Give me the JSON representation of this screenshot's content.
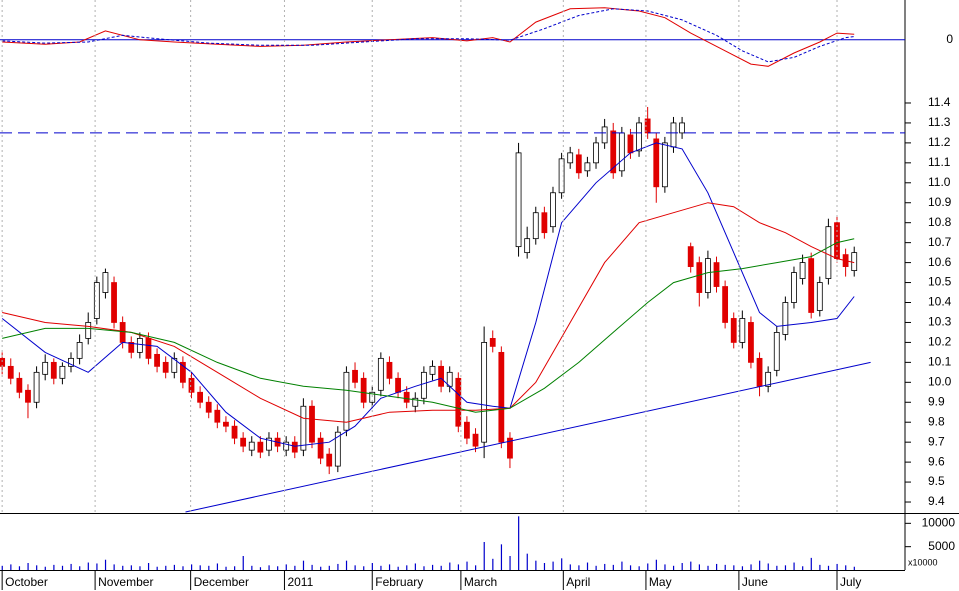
{
  "chart_data": [
    {
      "type": "line",
      "xlim": [
        -0.25,
        104.9
      ],
      "ylim": [
        -0.25,
        0.18
      ],
      "yticks": [
        0
      ],
      "zero_color": "#0000cc",
      "series": [
        {
          "color": "#e00000",
          "dash": false,
          "x": [
            0,
            5,
            9,
            12,
            16,
            20,
            25,
            30,
            35,
            40,
            45,
            50,
            54,
            57,
            59,
            62,
            66,
            70,
            74,
            77,
            80,
            84,
            87,
            89,
            92,
            95,
            97,
            99
          ],
          "values": [
            -0.01,
            -0.02,
            -0.01,
            0.04,
            0.0,
            -0.01,
            -0.02,
            -0.03,
            -0.025,
            -0.01,
            0.0,
            0.01,
            -0.005,
            0.01,
            -0.01,
            0.08,
            0.14,
            0.145,
            0.13,
            0.1,
            0.03,
            -0.05,
            -0.11,
            -0.12,
            -0.06,
            -0.01,
            0.03,
            0.025
          ]
        },
        {
          "color": "#0000cc",
          "dash": true,
          "x": [
            0,
            5,
            10,
            14,
            18,
            24,
            30,
            36,
            42,
            48,
            54,
            59,
            63,
            67,
            71,
            75,
            79,
            83,
            86,
            89,
            92,
            95,
            98,
            99
          ],
          "values": [
            -0.005,
            -0.015,
            -0.01,
            0.02,
            0.005,
            -0.015,
            -0.025,
            -0.025,
            -0.01,
            0.005,
            0.005,
            -0.002,
            0.05,
            0.11,
            0.14,
            0.13,
            0.09,
            0.02,
            -0.05,
            -0.1,
            -0.08,
            -0.03,
            0.01,
            0.015
          ]
        }
      ]
    },
    {
      "type": "candlestick",
      "xlim": [
        -0.25,
        104.9
      ],
      "ylim": [
        9.35,
        11.44
      ],
      "yticks": [
        9.4,
        9.5,
        9.6,
        9.7,
        9.8,
        9.9,
        {
          "value": 10,
          "label": "10.0"
        },
        10.1,
        10.2,
        10.3,
        10.4,
        10.5,
        10.6,
        10.7,
        10.8,
        10.9,
        {
          "value": 11,
          "label": "11.0"
        },
        11.1,
        11.2,
        11.3,
        11.4
      ],
      "up_color": "#ffffff",
      "down_color": "#e00000",
      "open": [
        10.12,
        10.08,
        10.02,
        9.96,
        9.9,
        10.04,
        10.1,
        10.02,
        10.08,
        10.12,
        10.22,
        10.32,
        10.45,
        10.5,
        10.3,
        10.2,
        10.15,
        10.22,
        10.14,
        10.1,
        10.05,
        10.1,
        10.02,
        9.95,
        9.9,
        9.86,
        9.8,
        9.78,
        9.72,
        9.66,
        9.7,
        9.66,
        9.72,
        9.66,
        9.7,
        9.66,
        9.88,
        9.72,
        9.64,
        9.58,
        9.76,
        10.06,
        10.02,
        9.9,
        9.96,
        10.1,
        10.02,
        9.95,
        9.88,
        9.92,
        10.04,
        10.08,
        9.98,
        10.02,
        9.8,
        9.74,
        9.7,
        10.22,
        10.15,
        9.72,
        10.68,
        10.65,
        10.72,
        10.85,
        10.78,
        10.95,
        11.1,
        11.14,
        11.06,
        11.1,
        11.2,
        11.26,
        11.06,
        11.24,
        11.16,
        11.32,
        11.22,
        10.98,
        11.18,
        11.25,
        10.68,
        10.6,
        10.45,
        10.6,
        10.48,
        10.32,
        10.2,
        10.3,
        10.12,
        9.98,
        10.06,
        10.24,
        10.4,
        10.52,
        10.62,
        10.36,
        10.52,
        10.8,
        10.64,
        10.56
      ],
      "high": [
        10.15,
        10.12,
        10.05,
        9.99,
        10.08,
        10.14,
        10.12,
        10.1,
        10.15,
        10.24,
        10.35,
        10.53,
        10.57,
        10.53,
        10.33,
        10.23,
        10.25,
        10.25,
        10.17,
        10.13,
        10.15,
        10.13,
        10.05,
        9.98,
        9.93,
        9.89,
        9.83,
        9.81,
        9.75,
        9.73,
        9.73,
        9.75,
        9.75,
        9.73,
        9.73,
        9.92,
        9.91,
        9.75,
        9.67,
        9.78,
        10.08,
        10.1,
        10.05,
        9.98,
        10.15,
        10.13,
        10.05,
        9.98,
        9.95,
        10.08,
        10.11,
        10.11,
        10.08,
        10.05,
        9.83,
        9.77,
        10.28,
        10.26,
        10.18,
        9.75,
        11.2,
        10.78,
        10.88,
        10.88,
        10.98,
        11.15,
        11.18,
        11.17,
        11.13,
        11.23,
        11.32,
        11.3,
        11.28,
        11.27,
        11.33,
        11.38,
        11.25,
        11.23,
        11.33,
        11.33,
        10.7,
        10.63,
        10.66,
        10.63,
        10.51,
        10.35,
        10.36,
        10.33,
        10.15,
        10.08,
        10.28,
        10.43,
        10.58,
        10.64,
        10.65,
        10.53,
        10.82,
        10.83,
        10.67,
        10.68
      ],
      "low": [
        10.04,
        9.99,
        9.92,
        9.82,
        9.87,
        10.01,
        9.99,
        9.99,
        10.05,
        10.09,
        10.19,
        10.29,
        10.42,
        10.27,
        10.17,
        10.12,
        10.12,
        10.09,
        10.05,
        10.02,
        10.02,
        9.97,
        9.92,
        9.87,
        9.82,
        9.77,
        9.75,
        9.69,
        9.65,
        9.63,
        9.62,
        9.63,
        9.65,
        9.63,
        9.62,
        9.63,
        9.67,
        9.59,
        9.54,
        9.55,
        9.73,
        9.97,
        9.87,
        9.87,
        9.93,
        9.99,
        9.92,
        9.87,
        9.85,
        9.89,
        10.01,
        9.95,
        9.95,
        9.75,
        9.69,
        9.65,
        9.62,
        10.15,
        9.67,
        9.57,
        10.63,
        10.62,
        10.69,
        10.72,
        10.75,
        10.92,
        11.07,
        11.02,
        11.03,
        11.07,
        11.17,
        11.02,
        11.03,
        11.12,
        11.13,
        11.22,
        10.9,
        10.95,
        11.15,
        11.22,
        10.55,
        10.38,
        10.42,
        10.45,
        10.27,
        10.17,
        10.17,
        10.07,
        9.93,
        9.95,
        10.03,
        10.21,
        10.37,
        10.49,
        10.32,
        10.33,
        10.49,
        10.6,
        10.53,
        10.53
      ],
      "close": [
        10.08,
        10.02,
        9.95,
        9.9,
        10.05,
        10.1,
        10.02,
        10.08,
        10.12,
        10.2,
        10.3,
        10.5,
        10.55,
        10.3,
        10.2,
        10.15,
        10.22,
        10.12,
        10.08,
        10.05,
        10.12,
        10.0,
        9.95,
        9.9,
        9.85,
        9.8,
        9.78,
        9.72,
        9.68,
        9.7,
        9.65,
        9.72,
        9.68,
        9.7,
        9.65,
        9.88,
        9.7,
        9.62,
        9.58,
        9.75,
        10.05,
        10.0,
        9.9,
        9.95,
        10.12,
        10.02,
        9.95,
        9.9,
        9.92,
        10.05,
        10.08,
        9.98,
        10.05,
        9.78,
        9.72,
        9.68,
        10.2,
        10.18,
        9.7,
        9.62,
        11.15,
        10.72,
        10.85,
        10.75,
        10.95,
        11.12,
        11.15,
        11.05,
        11.1,
        11.2,
        11.28,
        11.05,
        11.25,
        11.15,
        11.3,
        11.25,
        10.98,
        11.2,
        11.3,
        11.3,
        10.58,
        10.45,
        10.62,
        10.48,
        10.3,
        10.2,
        10.32,
        10.1,
        9.98,
        10.05,
        10.25,
        10.4,
        10.55,
        10.6,
        10.35,
        10.5,
        10.78,
        10.62,
        10.58,
        10.65
      ],
      "series": [
        {
          "color": "#0000cc",
          "x": [
            0,
            5,
            10,
            14,
            18,
            22,
            26,
            30,
            34,
            38,
            41,
            44,
            48,
            51,
            54,
            57,
            59,
            62,
            65,
            69,
            73,
            76,
            79,
            82,
            85,
            88,
            90,
            94,
            97,
            99
          ],
          "values": [
            10.32,
            10.15,
            10.05,
            10.2,
            10.18,
            10.05,
            9.85,
            9.72,
            9.68,
            9.7,
            9.78,
            9.92,
            9.98,
            10.02,
            9.9,
            9.88,
            9.87,
            10.3,
            10.8,
            11.0,
            11.15,
            11.2,
            11.17,
            10.95,
            10.65,
            10.35,
            10.28,
            10.3,
            10.32,
            10.43
          ]
        },
        {
          "color": "#e00000",
          "x": [
            0,
            5,
            10,
            15,
            20,
            25,
            30,
            35,
            40,
            45,
            50,
            55,
            59,
            62,
            66,
            70,
            74,
            78,
            82,
            85,
            88,
            91,
            94,
            97,
            99
          ],
          "values": [
            10.35,
            10.3,
            10.28,
            10.25,
            10.18,
            10.05,
            9.92,
            9.82,
            9.8,
            9.85,
            9.86,
            9.86,
            9.87,
            10.0,
            10.3,
            10.6,
            10.8,
            10.85,
            10.9,
            10.88,
            10.8,
            10.75,
            10.68,
            10.62,
            10.6
          ]
        },
        {
          "color": "#008000",
          "x": [
            0,
            5,
            10,
            15,
            20,
            25,
            30,
            35,
            40,
            45,
            50,
            55,
            59,
            63,
            67,
            71,
            75,
            78,
            82,
            86,
            90,
            94,
            97,
            99
          ],
          "values": [
            10.22,
            10.27,
            10.27,
            10.25,
            10.2,
            10.1,
            10.02,
            9.98,
            9.96,
            9.93,
            9.9,
            9.85,
            9.87,
            9.97,
            10.1,
            10.25,
            10.4,
            10.5,
            10.55,
            10.57,
            10.6,
            10.63,
            10.7,
            10.72
          ]
        }
      ],
      "reference_lines": [
        {
          "color": "#0000cc",
          "dash": true,
          "x": [
            -0.25,
            104.9
          ],
          "values": [
            11.25,
            11.25
          ]
        },
        {
          "color": "#0000cc",
          "dash": false,
          "x": [
            21.3,
            100.9
          ],
          "values": [
            9.35,
            10.1
          ]
        }
      ]
    },
    {
      "type": "bar",
      "xlim": [
        -0.25,
        104.9
      ],
      "ylim": [
        0,
        12000
      ],
      "yticks": [
        10000,
        5000
      ],
      "color": "#0000cc",
      "unit_label": "x10000",
      "xticks": [
        {
          "value": 0,
          "label": "October"
        },
        {
          "value": 10.8,
          "label": "November"
        },
        {
          "value": 21.9,
          "label": "December"
        },
        {
          "value": 32.8,
          "label": "2011"
        },
        {
          "value": 43,
          "label": "February"
        },
        {
          "value": 53.3,
          "label": "March"
        },
        {
          "value": 65.2,
          "label": "April"
        },
        {
          "value": 74.8,
          "label": "May"
        },
        {
          "value": 85.6,
          "label": "June"
        },
        {
          "value": 97,
          "label": "July"
        }
      ],
      "values": [
        900,
        1200,
        800,
        1500,
        1000,
        700,
        1100,
        900,
        1300,
        800,
        1600,
        1400,
        2200,
        1200,
        900,
        1000,
        800,
        1500,
        700,
        900,
        1100,
        800,
        1200,
        1000,
        900,
        1400,
        700,
        800,
        3000,
        900,
        600,
        1000,
        800,
        1200,
        900,
        2000,
        1100,
        700,
        900,
        1300,
        2000,
        1000,
        800,
        1500,
        900,
        1200,
        700,
        1000,
        1400,
        800,
        1100,
        900,
        1600,
        1200,
        1800,
        1000,
        6000,
        2400,
        5500,
        3000,
        11500,
        3500,
        2000,
        1500,
        1800,
        2500,
        1200,
        1000,
        1600,
        900,
        1300,
        1100,
        1800,
        1000,
        800,
        1400,
        2200,
        1200,
        900,
        1500,
        1800,
        1200,
        900,
        1300,
        1100,
        1000,
        800,
        1200,
        2000,
        1400,
        900,
        1000,
        1600,
        800,
        2600,
        1100,
        900,
        1300,
        1000,
        700
      ]
    }
  ]
}
